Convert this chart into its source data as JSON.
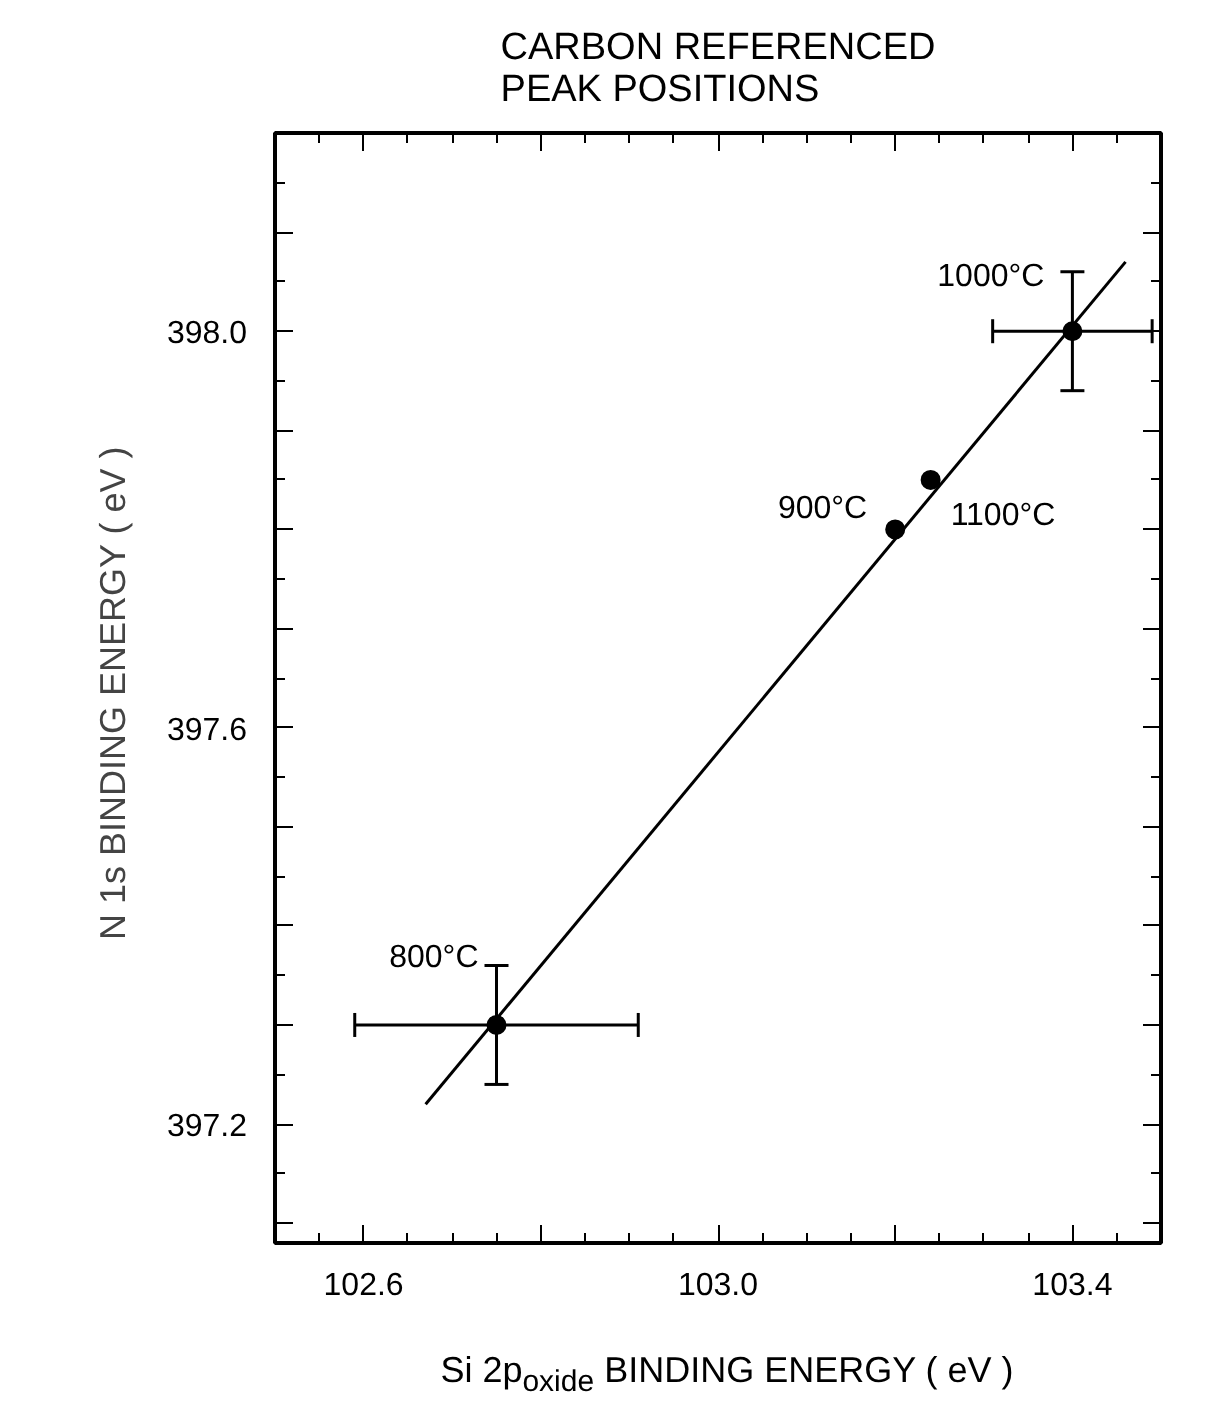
{
  "chart_data": {
    "type": "scatter",
    "title": "CARBON REFERENCED\nPEAK POSITIONS",
    "xlabel": "Si 2p$_{oxide}$ BINDING ENERGY ( eV )",
    "ylabel": "N 1s  BINDING ENERGY ( eV )",
    "xlim": [
      102.5,
      103.5
    ],
    "ylim": [
      397.08,
      398.2
    ],
    "xticks": [
      {
        "value": 102.6,
        "label": "102.6"
      },
      {
        "value": 102.8,
        "label": null
      },
      {
        "value": 103.0,
        "label": "103.0"
      },
      {
        "value": 103.2,
        "label": null
      },
      {
        "value": 103.4,
        "label": "103.4"
      }
    ],
    "yticks": [
      {
        "value": 397.1,
        "label": null
      },
      {
        "value": 397.2,
        "label": "397.2"
      },
      {
        "value": 397.3,
        "label": null
      },
      {
        "value": 397.4,
        "label": null
      },
      {
        "value": 397.5,
        "label": null
      },
      {
        "value": 397.6,
        "label": "397.6"
      },
      {
        "value": 397.7,
        "label": null
      },
      {
        "value": 397.8,
        "label": null
      },
      {
        "value": 397.9,
        "label": null
      },
      {
        "value": 398.0,
        "label": "398.0"
      },
      {
        "value": 398.1,
        "label": null
      },
      {
        "value": 398.2,
        "label": null
      }
    ],
    "grid": false,
    "series": [
      {
        "color": "#000000",
        "marker": "circle",
        "x": [
          102.75,
          103.2,
          103.24,
          103.4
        ],
        "values": [
          397.3,
          397.8,
          397.85,
          398.0
        ],
        "errors": [
          0.06,
          null,
          null,
          0.06
        ],
        "xerrors": [
          0.16,
          null,
          null,
          0.09
        ]
      },
      {
        "type": "line",
        "color": "#000000",
        "line_style": "solid",
        "x": [
          102.67,
          103.46
        ],
        "values": [
          397.22,
          398.07
        ]
      }
    ],
    "annotations": [
      {
        "text": "800°C",
        "x": 102.75,
        "y": 397.3
      },
      {
        "text": "900°C",
        "x": 103.2,
        "y": 397.8
      },
      {
        "text": "1100°C",
        "x": 103.24,
        "y": 397.85
      },
      {
        "text": "1000°C",
        "x": 103.4,
        "y": 398.0
      }
    ]
  }
}
